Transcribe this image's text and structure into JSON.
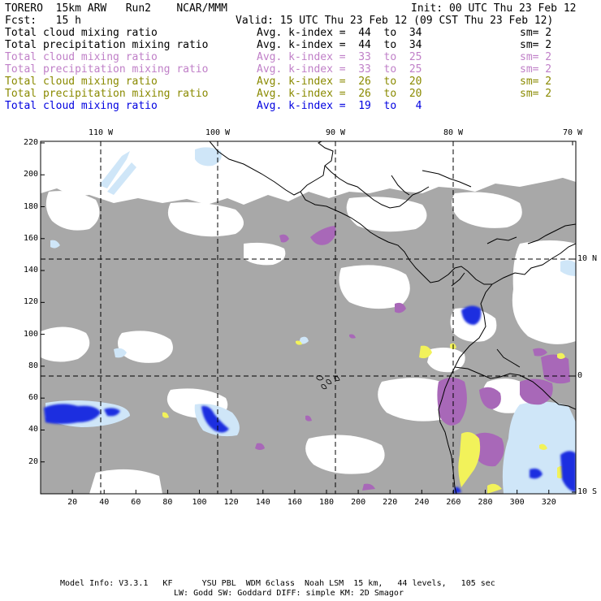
{
  "header": {
    "line1_left": "TORERO  15km ARW   Run2    NCAR/MMM",
    "line1_right": "Init: 00 UTC Thu 23 Feb 12",
    "line2_left": "Fcst:   15 h",
    "line2_right": "Valid: 15 UTC Thu 23 Feb 12 (09 CST Thu 23 Feb 12)"
  },
  "legend": [
    {
      "field": "Total cloud mixing ratio",
      "stat": "Avg. k-index =  44  to  34",
      "sm": "sm= 2",
      "color": "#000000"
    },
    {
      "field": "Total precipitation mixing ratio",
      "stat": "Avg. k-index =  44  to  34",
      "sm": "sm= 2",
      "color": "#000000"
    },
    {
      "field": "Total cloud mixing ratio",
      "stat": "Avg. k-index =  33  to  25",
      "sm": "sm= 2",
      "color": "#c080c8"
    },
    {
      "field": "Total precipitation mixing ratio",
      "stat": "Avg. k-index =  33  to  25",
      "sm": "sm= 2",
      "color": "#c080c8"
    },
    {
      "field": "Total cloud mixing ratio",
      "stat": "Avg. k-index =  26  to  20",
      "sm": "sm= 2",
      "color": "#8a8a00"
    },
    {
      "field": "Total precipitation mixing ratio",
      "stat": "Avg. k-index =  26  to  20",
      "sm": "sm= 2",
      "color": "#8a8a00"
    },
    {
      "field": "Total cloud mixing ratio",
      "stat": "Avg. k-index =  19  to   4",
      "sm": "",
      "color": "#0000e0"
    }
  ],
  "map": {
    "lon_labels": [
      "110 W",
      "100 W",
      "90 W",
      "80 W",
      "70 W"
    ],
    "lat_labels": [
      "10 N",
      "0",
      "10 S"
    ],
    "grid_y_labels": [
      "220",
      "200",
      "180",
      "160",
      "140",
      "120",
      "100",
      "80",
      "60",
      "40",
      "20"
    ],
    "grid_x_labels": [
      "20",
      "40",
      "60",
      "80",
      "100",
      "120",
      "140",
      "160",
      "180",
      "200",
      "220",
      "240",
      "260",
      "280",
      "300",
      "320"
    ],
    "colors": {
      "cloud_gray": "#a8a8a8",
      "light_blue": "#cfe6f8",
      "blue": "#1e2fe0",
      "purple": "#a868b8",
      "yellow": "#f2f25a",
      "grid": "#000000"
    }
  },
  "footer": {
    "line1": "Model Info: V3.3.1   KF      YSU PBL  WDM 6class  Noah LSM  15 km,   44 levels,   105 sec",
    "line2": "LW: Godd SW: Goddard DIFF: simple KM: 2D Smagor"
  }
}
